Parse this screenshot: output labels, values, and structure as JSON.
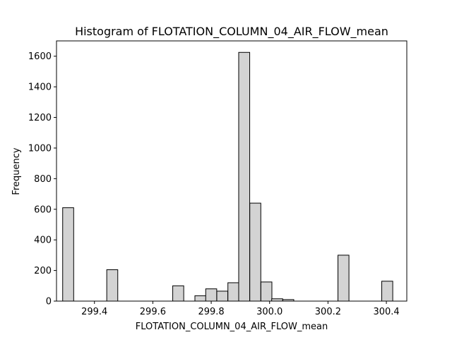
{
  "chart_data": {
    "type": "bar",
    "title": "Histogram of FLOTATION_COLUMN_04_AIR_FLOW_mean",
    "xlabel": "FLOTATION_COLUMN_04_AIR_FLOW_mean",
    "ylabel": "Frequency",
    "xlim": [
      299.27,
      300.47
    ],
    "ylim": [
      0,
      1700
    ],
    "x_ticks": [
      299.4,
      299.6,
      299.8,
      300.0,
      300.2,
      300.4
    ],
    "x_tick_labels": [
      "299.4",
      "299.6",
      "299.8",
      "300.0",
      "300.2",
      "300.4"
    ],
    "y_ticks": [
      0,
      200,
      400,
      600,
      800,
      1000,
      1200,
      1400,
      1600
    ],
    "y_tick_labels": [
      "0",
      "200",
      "400",
      "600",
      "800",
      "1000",
      "1200",
      "1400",
      "1600"
    ],
    "grid": false,
    "bin_width": 0.0377,
    "bins": [
      {
        "x": 299.31,
        "count": 610
      },
      {
        "x": 299.348,
        "count": 0
      },
      {
        "x": 299.386,
        "count": 0
      },
      {
        "x": 299.423,
        "count": 0
      },
      {
        "x": 299.461,
        "count": 205
      },
      {
        "x": 299.499,
        "count": 0
      },
      {
        "x": 299.536,
        "count": 0
      },
      {
        "x": 299.574,
        "count": 0
      },
      {
        "x": 299.612,
        "count": 0
      },
      {
        "x": 299.649,
        "count": 0
      },
      {
        "x": 299.687,
        "count": 100
      },
      {
        "x": 299.725,
        "count": 0
      },
      {
        "x": 299.763,
        "count": 35
      },
      {
        "x": 299.8,
        "count": 80
      },
      {
        "x": 299.838,
        "count": 65
      },
      {
        "x": 299.876,
        "count": 120
      },
      {
        "x": 299.913,
        "count": 1625
      },
      {
        "x": 299.951,
        "count": 640
      },
      {
        "x": 299.989,
        "count": 125
      },
      {
        "x": 300.026,
        "count": 15
      },
      {
        "x": 300.064,
        "count": 10
      },
      {
        "x": 300.102,
        "count": 0
      },
      {
        "x": 300.14,
        "count": 0
      },
      {
        "x": 300.177,
        "count": 0
      },
      {
        "x": 300.215,
        "count": 0
      },
      {
        "x": 300.253,
        "count": 300
      },
      {
        "x": 300.29,
        "count": 0
      },
      {
        "x": 300.328,
        "count": 0
      },
      {
        "x": 300.366,
        "count": 0
      },
      {
        "x": 300.403,
        "count": 130
      }
    ],
    "bar_color": "#d3d3d3",
    "edge_color": "#000000"
  }
}
